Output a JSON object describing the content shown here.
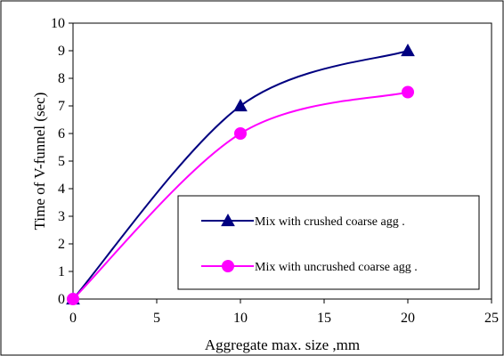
{
  "chart_data": {
    "type": "line",
    "title": "",
    "xlabel": "Aggregate max. size ,mm",
    "ylabel": "Time of V-funnel (sec)",
    "xlim": [
      0,
      25
    ],
    "ylim": [
      0,
      10
    ],
    "x_ticks": [
      "0",
      "5",
      "10",
      "15",
      "20",
      "25"
    ],
    "y_ticks": [
      "0",
      "1",
      "2",
      "3",
      "4",
      "5",
      "6",
      "7",
      "8",
      "9",
      "10"
    ],
    "grid": false,
    "smooth": true,
    "legend_position": "inside-lower-right",
    "series": [
      {
        "name": "Mix with crushed coarse agg .",
        "x": [
          0,
          10,
          20
        ],
        "y": [
          0,
          7,
          9
        ],
        "color": "#000080",
        "marker": "triangle"
      },
      {
        "name": "Mix with uncrushed coarse agg .",
        "x": [
          0,
          10,
          20
        ],
        "y": [
          0,
          6,
          7.5
        ],
        "color": "#ff00ff",
        "marker": "circle"
      }
    ]
  }
}
